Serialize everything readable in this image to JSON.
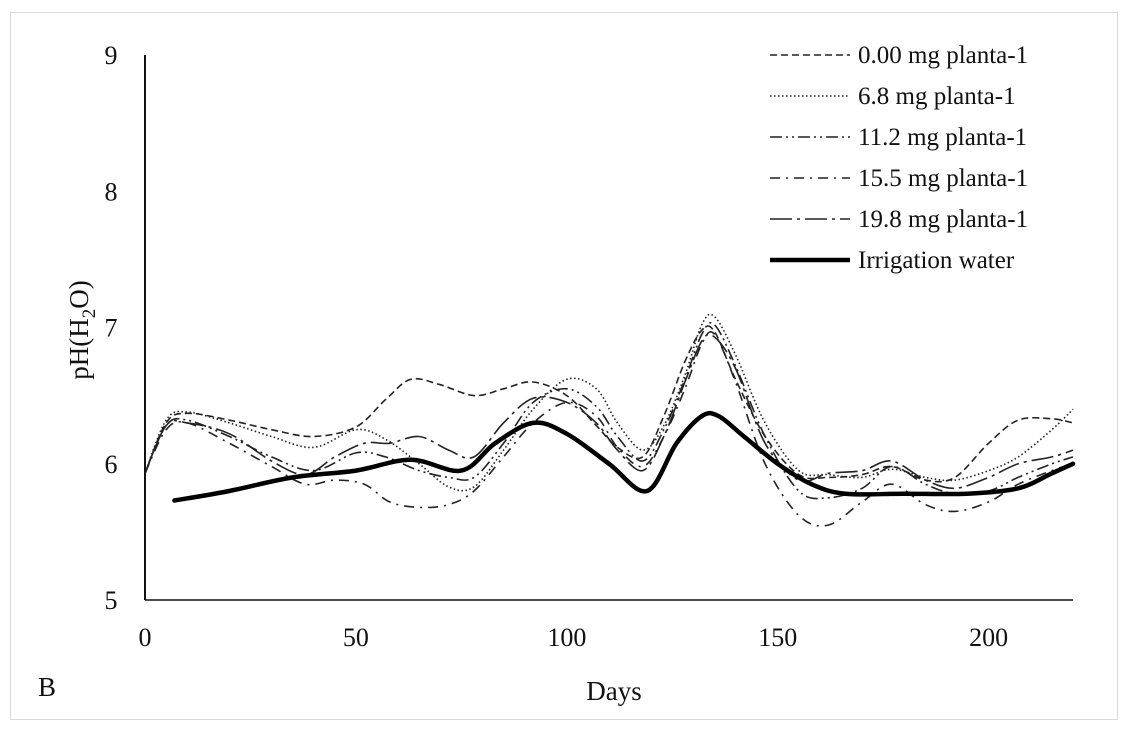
{
  "chart_data": {
    "type": "line",
    "panel_label": "B",
    "xlabel": "Days",
    "ylabel": {
      "pre": "pH(H",
      "sub": "2",
      "post": "O)"
    },
    "xlim": [
      0,
      220
    ],
    "ylim": [
      5,
      9
    ],
    "xticks": [
      0,
      50,
      100,
      150,
      200
    ],
    "yticks": [
      5,
      6,
      7,
      8,
      9
    ],
    "grid": false,
    "legend_position": "top-right",
    "series": [
      {
        "name": "0.00 mg planta-1",
        "style": "dashed",
        "color": "#222222",
        "x": [
          0,
          5,
          10,
          20,
          30,
          40,
          50,
          57,
          63,
          70,
          78,
          85,
          92,
          100,
          107,
          112,
          118,
          123,
          128,
          132,
          135,
          140,
          147,
          155,
          162,
          170,
          177,
          185,
          192,
          200,
          207,
          215,
          220
        ],
        "y": [
          5.93,
          6.3,
          6.37,
          6.32,
          6.25,
          6.2,
          6.27,
          6.47,
          6.62,
          6.58,
          6.5,
          6.55,
          6.6,
          6.5,
          6.28,
          6.12,
          6.05,
          6.35,
          6.75,
          6.98,
          6.97,
          6.62,
          6.2,
          5.92,
          5.9,
          5.92,
          5.98,
          5.88,
          5.9,
          6.15,
          6.32,
          6.33,
          6.3
        ]
      },
      {
        "name": "6.8 mg planta-1",
        "style": "dotted",
        "color": "#222222",
        "x": [
          0,
          5,
          10,
          20,
          30,
          40,
          50,
          57,
          65,
          72,
          78,
          85,
          92,
          100,
          107,
          112,
          118,
          123,
          128,
          132,
          135,
          140,
          147,
          155,
          162,
          170,
          177,
          185,
          192,
          200,
          207,
          215,
          220
        ],
        "y": [
          5.93,
          6.32,
          6.38,
          6.3,
          6.2,
          6.12,
          6.25,
          6.18,
          6.0,
          5.83,
          5.83,
          6.1,
          6.4,
          6.62,
          6.55,
          6.3,
          6.1,
          6.28,
          6.65,
          7.02,
          7.08,
          6.8,
          6.3,
          5.95,
          5.92,
          5.9,
          5.96,
          5.9,
          5.88,
          5.95,
          6.05,
          6.25,
          6.4
        ]
      },
      {
        "name": "11.2 mg planta-1",
        "style": "dashdotdot",
        "color": "#222222",
        "x": [
          0,
          5,
          10,
          20,
          30,
          40,
          50,
          57,
          65,
          72,
          78,
          85,
          92,
          100,
          107,
          112,
          118,
          123,
          128,
          132,
          135,
          140,
          147,
          155,
          162,
          170,
          177,
          185,
          192,
          200,
          207,
          215,
          220
        ],
        "y": [
          5.93,
          6.28,
          6.32,
          6.2,
          6.05,
          5.95,
          6.08,
          6.05,
          5.95,
          5.9,
          5.9,
          6.15,
          6.45,
          6.55,
          6.42,
          6.2,
          6.02,
          6.25,
          6.62,
          6.95,
          7.02,
          6.72,
          6.2,
          5.8,
          5.75,
          5.82,
          5.98,
          5.85,
          5.78,
          5.8,
          5.9,
          6.0,
          6.05
        ]
      },
      {
        "name": "15.5 mg planta-1",
        "style": "dashdot-sparse",
        "color": "#222222",
        "x": [
          0,
          5,
          10,
          20,
          30,
          38,
          45,
          52,
          58,
          65,
          72,
          78,
          85,
          92,
          100,
          107,
          112,
          118,
          123,
          128,
          132,
          135,
          140,
          147,
          155,
          162,
          170,
          177,
          185,
          192,
          200,
          207,
          215,
          220
        ],
        "y": [
          5.93,
          6.25,
          6.3,
          6.15,
          5.98,
          5.85,
          5.88,
          5.85,
          5.72,
          5.68,
          5.7,
          5.8,
          6.05,
          6.3,
          6.45,
          6.35,
          6.12,
          5.98,
          6.2,
          6.55,
          6.88,
          6.95,
          6.6,
          6.0,
          5.62,
          5.55,
          5.72,
          5.85,
          5.7,
          5.65,
          5.72,
          5.85,
          5.95,
          6.0
        ]
      },
      {
        "name": "19.8 mg planta-1",
        "style": "longdashdot",
        "color": "#222222",
        "x": [
          0,
          5,
          10,
          20,
          30,
          38,
          45,
          52,
          58,
          65,
          72,
          78,
          85,
          92,
          100,
          107,
          112,
          118,
          123,
          128,
          132,
          135,
          140,
          147,
          155,
          162,
          170,
          177,
          185,
          192,
          200,
          207,
          215,
          220
        ],
        "y": [
          5.93,
          6.28,
          6.3,
          6.22,
          6.02,
          5.92,
          6.05,
          6.15,
          6.15,
          6.2,
          6.1,
          6.05,
          6.3,
          6.48,
          6.45,
          6.3,
          6.1,
          5.95,
          6.2,
          6.6,
          6.9,
          6.93,
          6.7,
          6.15,
          5.88,
          5.93,
          5.95,
          6.02,
          5.88,
          5.82,
          5.9,
          6.0,
          6.05,
          6.1
        ]
      },
      {
        "name": "Irrigation water",
        "style": "thick",
        "color": "#000000",
        "x": [
          7,
          20,
          35,
          50,
          63,
          75,
          83,
          92,
          100,
          110,
          119,
          126,
          132,
          136,
          142,
          150,
          158,
          166,
          180,
          195,
          207,
          215,
          220
        ],
        "y": [
          5.73,
          5.8,
          5.9,
          5.95,
          6.03,
          5.95,
          6.15,
          6.3,
          6.22,
          6.0,
          5.8,
          6.15,
          6.35,
          6.35,
          6.2,
          6.0,
          5.85,
          5.78,
          5.78,
          5.78,
          5.82,
          5.93,
          6.0
        ]
      }
    ]
  }
}
